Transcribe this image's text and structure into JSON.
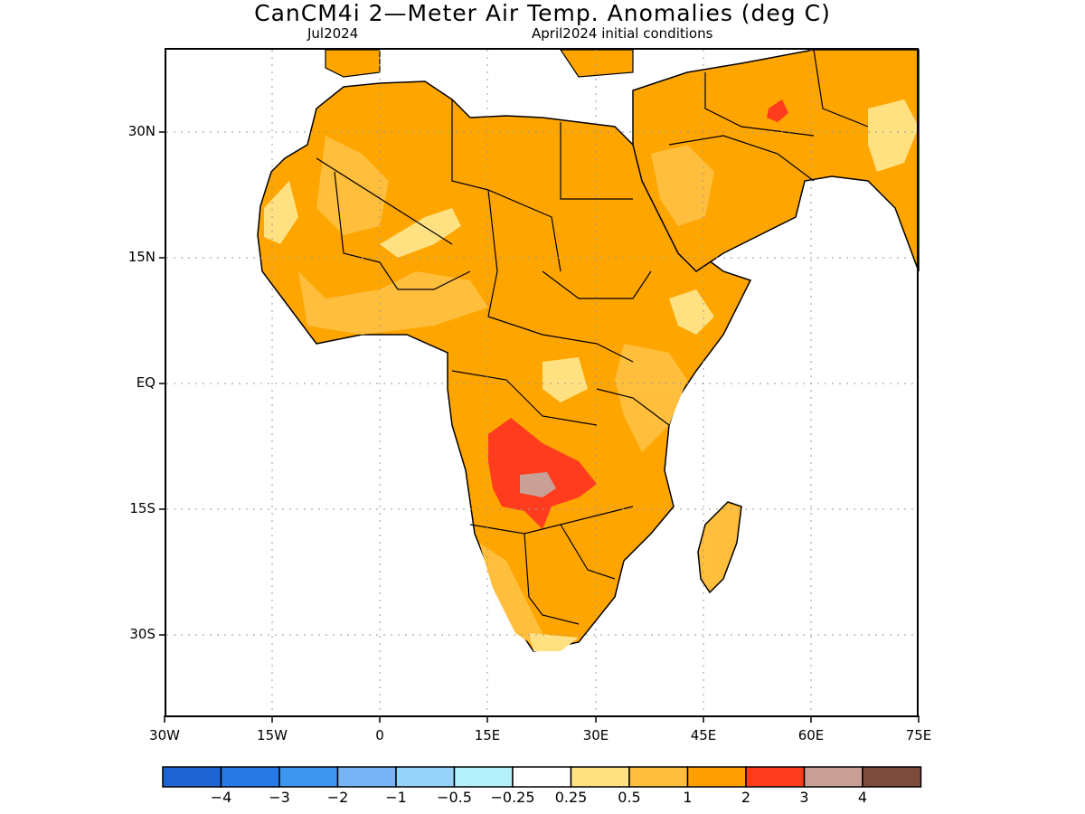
{
  "header": {
    "title": "CanCM4i 2—Meter Air Temp. Anomalies (deg C)",
    "valid_month": "Jul2024",
    "init": "April2024 initial conditions"
  },
  "map": {
    "lat_labels": [
      "30N",
      "15N",
      "EQ",
      "15S",
      "30S"
    ],
    "lon_labels": [
      "30W",
      "15W",
      "0",
      "15E",
      "30E",
      "45E",
      "60E",
      "75E"
    ],
    "extent": {
      "lon": [
        -30,
        75
      ],
      "lat": [
        -45,
        38
      ]
    },
    "land_color": "#ffffff",
    "regions": [
      {
        "name": "north-africa-arabia",
        "category": "1 to 2",
        "color": "#ffa500"
      },
      {
        "name": "sahel-west",
        "category": "0.5 to 1",
        "color": "#ffbe3c"
      },
      {
        "name": "angola-zambia-hotspot",
        "category": "2 to 3",
        "color": "#ff3c1e"
      },
      {
        "name": "zambia-core",
        "category": "3 to 4",
        "color": "#c8a096"
      },
      {
        "name": "iran-hotspot",
        "category": "2 to 3",
        "color": "#ff3c1e"
      },
      {
        "name": "light-patches",
        "category": "0.25 to 0.5",
        "color": "#ffe182"
      }
    ]
  },
  "colorbar": {
    "colors": [
      "#1e64d2",
      "#2878e6",
      "#3c96f0",
      "#78b4f5",
      "#96d2fa",
      "#b4f0fa",
      "#ffffff",
      "#ffe182",
      "#ffbe3c",
      "#ffa000",
      "#ff3c1e",
      "#c8a096",
      "#7d4b3c"
    ],
    "labels": [
      "−4",
      "−3",
      "−2",
      "−1",
      "−0.5",
      "−0.25",
      "0.25",
      "0.5",
      "1",
      "2",
      "3",
      "4"
    ]
  }
}
